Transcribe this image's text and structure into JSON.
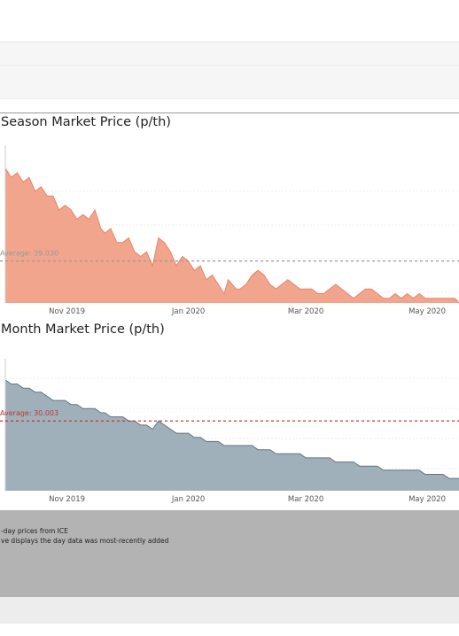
{
  "footer": {
    "line1": "-day prices from ICE",
    "line2": "ve displays the day data was most-recently added"
  },
  "chart_data": [
    {
      "type": "area",
      "title": "Season Market Price (p/th)",
      "color": "#f2a58d",
      "line_color": "#e8836a",
      "average": {
        "label": "Average: 39.030",
        "value": 39.03,
        "color": "#999999"
      },
      "ylim": [
        30,
        62
      ],
      "x_ticks": [
        "Nov 2019",
        "Jan 2020",
        "Mar 2020",
        "May 2020"
      ],
      "x_tick_days": [
        31,
        92,
        151,
        212
      ],
      "x_days": [
        0,
        3,
        6,
        9,
        12,
        15,
        18,
        21,
        24,
        27,
        30,
        33,
        36,
        39,
        42,
        45,
        48,
        50,
        53,
        56,
        59,
        62,
        65,
        68,
        71,
        74,
        77,
        80,
        83,
        86,
        89,
        92,
        95,
        98,
        101,
        104,
        107,
        110,
        112,
        114,
        116,
        118,
        121,
        124,
        127,
        130,
        133,
        136,
        139,
        142,
        145,
        148,
        151,
        154,
        157,
        160,
        163,
        166,
        169,
        172,
        175,
        178,
        181,
        184,
        187,
        190,
        193,
        196,
        199,
        202,
        205,
        208,
        211,
        214,
        217,
        220,
        223,
        226,
        228
      ],
      "values": [
        59,
        57,
        58,
        56,
        57,
        54,
        55,
        53,
        53,
        50,
        51,
        50,
        48,
        49,
        48,
        50,
        46,
        45,
        46,
        43,
        43,
        44,
        41,
        40,
        41,
        38,
        44,
        43,
        41,
        38,
        40,
        39,
        37,
        38,
        35,
        36,
        34,
        32,
        35,
        34,
        33,
        33,
        34,
        36,
        37,
        36,
        34,
        33,
        34,
        35,
        34,
        33,
        33,
        33,
        32,
        32,
        33,
        34,
        33,
        32,
        31,
        32,
        33,
        33,
        32,
        31,
        31,
        32,
        31,
        32,
        31,
        32,
        31,
        31,
        31,
        31,
        31,
        31,
        30
      ]
    },
    {
      "type": "area",
      "title": "Month Market Price (p/th)",
      "color": "#9fb0bb",
      "line_color": "#617583",
      "average": {
        "label": "Average: 30.003",
        "value": 30.003,
        "color": "#c0392b"
      },
      "ylim": [
        13,
        43
      ],
      "x_ticks": [
        "Nov 2019",
        "Jan 2020",
        "Mar 2020",
        "May 2020"
      ],
      "x_tick_days": [
        31,
        92,
        151,
        212
      ],
      "x_days": [
        0,
        3,
        6,
        9,
        12,
        15,
        18,
        21,
        24,
        27,
        30,
        33,
        36,
        39,
        42,
        45,
        48,
        50,
        53,
        56,
        59,
        62,
        65,
        68,
        71,
        74,
        77,
        80,
        83,
        86,
        89,
        92,
        95,
        98,
        101,
        104,
        107,
        110,
        112,
        114,
        116,
        118,
        121,
        124,
        127,
        130,
        133,
        136,
        139,
        142,
        145,
        148,
        151,
        154,
        157,
        160,
        163,
        166,
        169,
        172,
        175,
        178,
        181,
        184,
        187,
        190,
        193,
        196,
        199,
        202,
        205,
        208,
        211,
        214,
        217,
        220,
        223,
        226,
        228
      ],
      "values": [
        40,
        39,
        39,
        38,
        38,
        37,
        37,
        36,
        35,
        35,
        35,
        34,
        34,
        33,
        33,
        33,
        32,
        32,
        31,
        31,
        31,
        30,
        30,
        29,
        29,
        28,
        30,
        29,
        28,
        27,
        27,
        27,
        26,
        26,
        25,
        25,
        25,
        24,
        24,
        24,
        24,
        24,
        24,
        24,
        23,
        23,
        23,
        22,
        22,
        22,
        22,
        22,
        21,
        21,
        21,
        21,
        21,
        20,
        20,
        20,
        20,
        19,
        19,
        19,
        19,
        18,
        18,
        18,
        18,
        18,
        18,
        18,
        17,
        17,
        17,
        17,
        16,
        16,
        16
      ]
    }
  ]
}
